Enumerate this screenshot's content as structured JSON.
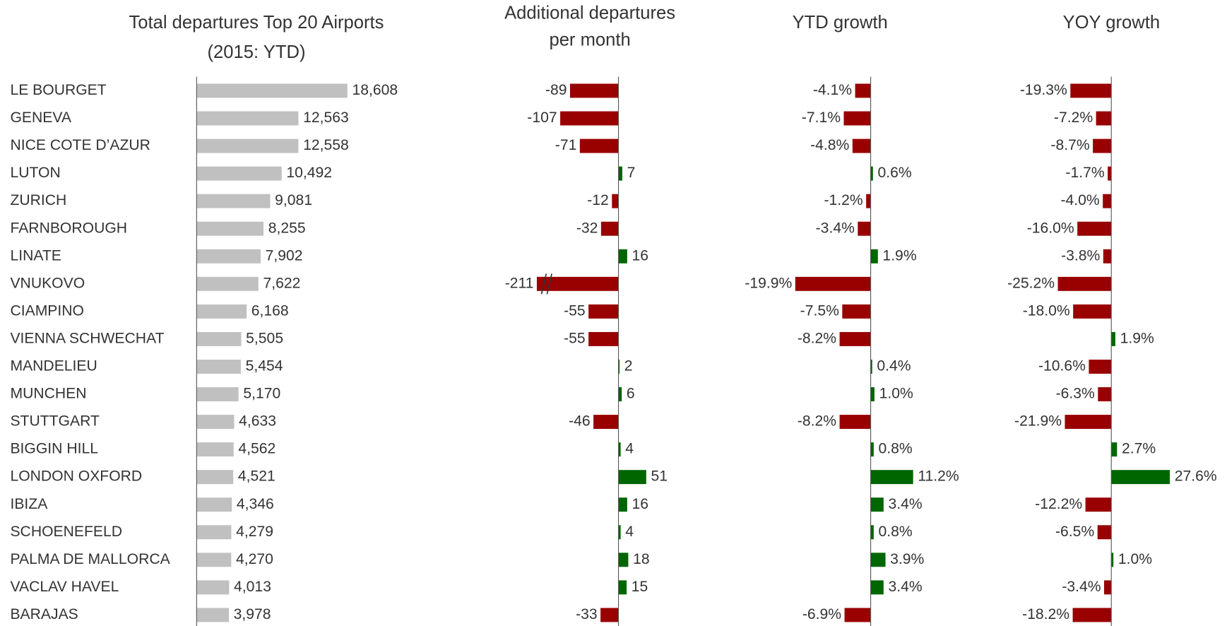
{
  "chart_data": [
    {
      "type": "hbar",
      "title": [
        "Total departures Top 20 Airports",
        "(2015: YTD)"
      ],
      "categories": [
        "LE BOURGET",
        "GENEVA",
        "NICE COTE D’AZUR",
        "LUTON",
        "ZURICH",
        "FARNBOROUGH",
        "LINATE",
        "VNUKOVO",
        "CIAMPINO",
        "VIENNA SCHWECHAT",
        "MANDELIEU",
        "MUNCHEN",
        "STUTTGART",
        "BIGGIN HILL",
        "LONDON OXFORD",
        "IBIZA",
        "SCHOENEFELD",
        "PALMA DE MALLORCA",
        "VACLAV HAVEL",
        "BARAJAS"
      ],
      "values": [
        18608,
        12563,
        12558,
        10492,
        9081,
        8255,
        7902,
        7622,
        6168,
        5505,
        5454,
        5170,
        4633,
        4562,
        4521,
        4346,
        4279,
        4270,
        4013,
        3978
      ],
      "value_labels": [
        "18,608",
        "12,563",
        "12,558",
        "10,492",
        "9,081",
        "8,255",
        "7,902",
        "7,622",
        "6,168",
        "5,505",
        "5,454",
        "5,170",
        "4,633",
        "4,562",
        "4,521",
        "4,346",
        "4,279",
        "4,270",
        "4,013",
        "3,978"
      ],
      "color": "#c0c0c0",
      "xlim": [
        0,
        20000
      ]
    },
    {
      "type": "hbar",
      "title": [
        "Additional departures",
        "per month"
      ],
      "values": [
        -89,
        -107,
        -71,
        7,
        -12,
        -32,
        16,
        -211,
        -55,
        -55,
        2,
        6,
        -46,
        4,
        51,
        16,
        4,
        18,
        15,
        -33
      ],
      "colors": {
        "negative": "#990000",
        "positive": "#006600"
      },
      "xlim": [
        -150,
        90
      ],
      "axis_break": true
    },
    {
      "type": "hbar",
      "title": [
        "YTD growth"
      ],
      "values": [
        -4.1,
        -7.1,
        -4.8,
        0.6,
        -1.2,
        -3.4,
        1.9,
        -19.9,
        -7.5,
        -8.2,
        0.4,
        1.0,
        -8.2,
        0.8,
        11.2,
        3.4,
        0.8,
        3.9,
        3.4,
        -6.9
      ],
      "value_labels": [
        "-4.1%",
        "-7.1%",
        "-4.8%",
        "0.6%",
        "-1.2%",
        "-3.4%",
        "1.9%",
        "-19.9%",
        "-7.5%",
        "-8.2%",
        "0.4%",
        "1.0%",
        "-8.2%",
        "0.8%",
        "11.2%",
        "3.4%",
        "0.8%",
        "3.9%",
        "3.4%",
        "-6.9%"
      ],
      "colors": {
        "negative": "#990000",
        "positive": "#006600"
      },
      "xlim": [
        -20,
        12
      ]
    },
    {
      "type": "hbar",
      "title": [
        "YOY growth"
      ],
      "values": [
        -19.3,
        -7.2,
        -8.7,
        -1.7,
        -4.0,
        -16.0,
        -3.8,
        -25.2,
        -18.0,
        1.9,
        -10.6,
        -6.3,
        -21.9,
        2.7,
        27.6,
        -12.2,
        -6.5,
        1.0,
        -3.4,
        -18.2
      ],
      "value_labels": [
        "-19.3%",
        "-7.2%",
        "-8.7%",
        "-1.7%",
        "-4.0%",
        "-16.0%",
        "-3.8%",
        "-25.2%",
        "-18.0%",
        "1.9%",
        "-10.6%",
        "-6.3%",
        "-21.9%",
        "2.7%",
        "27.6%",
        "-12.2%",
        "-6.5%",
        "1.0%",
        "-3.4%",
        "-18.2%"
      ],
      "colors": {
        "negative": "#990000",
        "positive": "#006600"
      },
      "xlim": [
        -26,
        28
      ]
    }
  ]
}
